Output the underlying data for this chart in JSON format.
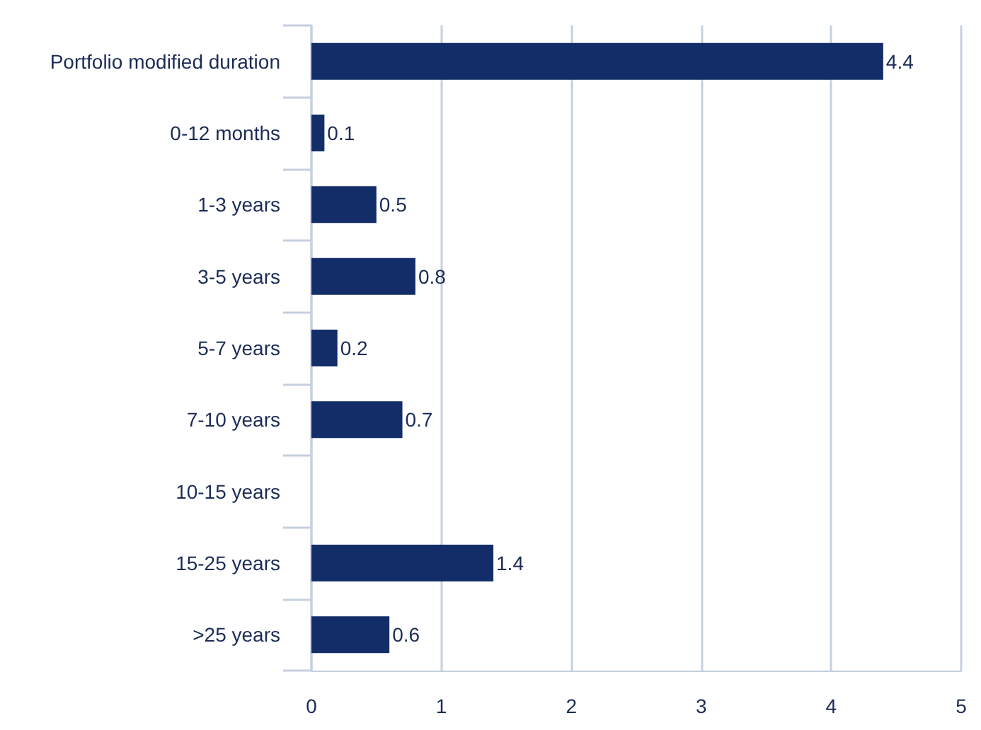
{
  "chart_data": {
    "type": "bar",
    "orientation": "horizontal",
    "categories": [
      "Portfolio modified duration",
      "0-12 months",
      "1-3 years",
      "3-5 years",
      "5-7 years",
      "7-10 years",
      "10-15 years",
      "15-25 years",
      ">25 years"
    ],
    "values": [
      4.4,
      0.1,
      0.5,
      0.8,
      0.2,
      0.7,
      null,
      1.4,
      0.6
    ],
    "color": "#132d68",
    "xlim": [
      0,
      5
    ],
    "xticks": [
      0,
      1,
      2,
      3,
      4,
      5
    ],
    "grid": "x",
    "data_labels": true
  }
}
